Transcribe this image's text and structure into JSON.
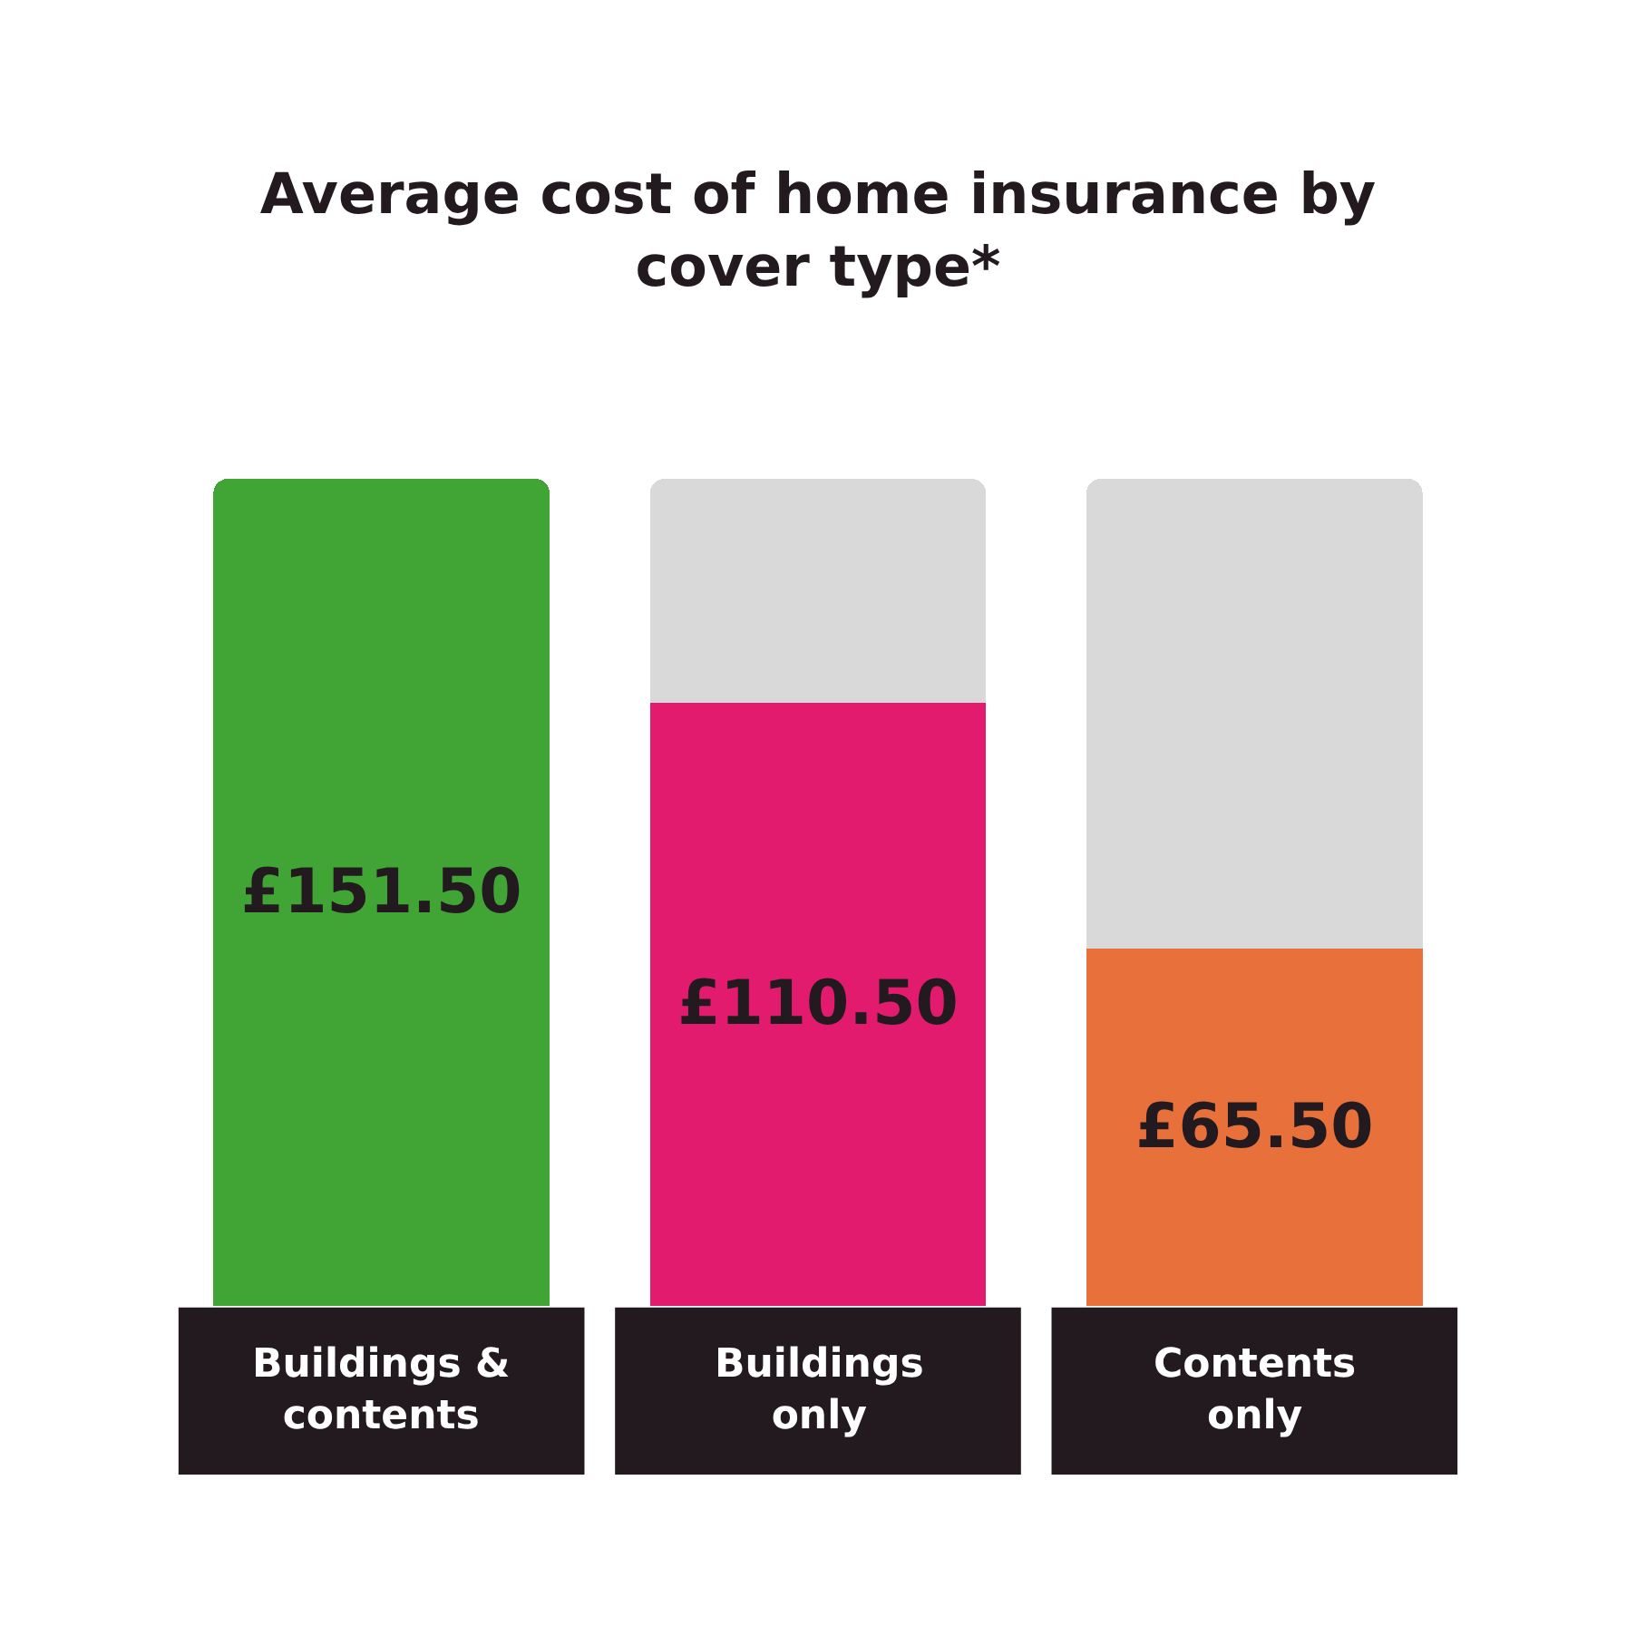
{
  "chart_data": {
    "type": "bar",
    "title": "Average cost of home insurance by cover type*",
    "categories": [
      "Buildings & contents",
      "Buildings only",
      "Contents only"
    ],
    "stacked": true,
    "series": [
      {
        "colors": [
          "#41a535",
          "#e31b6f",
          "#e8703a"
        ],
        "values": [
          151.5,
          110.5,
          65.5
        ],
        "value_labels": [
          "£151.50",
          "£110.50",
          "£65.50"
        ]
      },
      {
        "color": "#d9d9d9",
        "values": [
          null,
          41,
          86
        ]
      }
    ],
    "tick_labels": false
  }
}
